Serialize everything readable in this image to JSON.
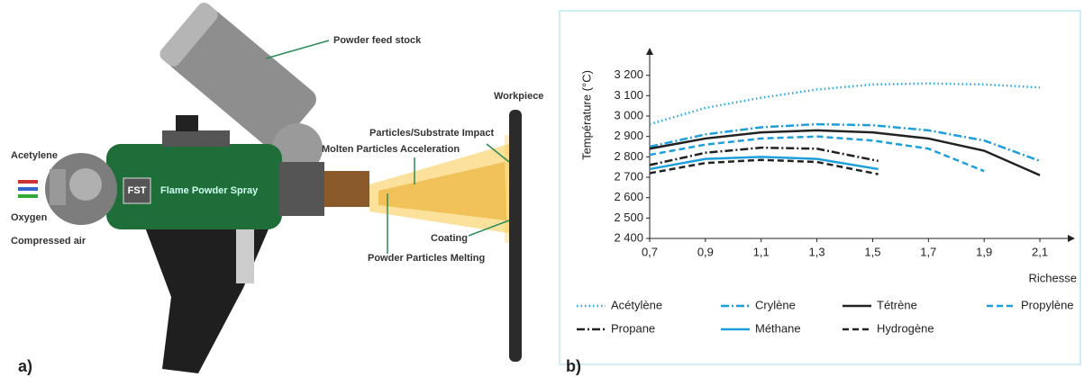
{
  "diagram": {
    "panel_label": "a)",
    "labels": {
      "feed": "Powder feed stock",
      "workpiece": "Workpiece",
      "impact": "Particles/Substrate Impact",
      "acceleration": "Molten Particles Acceleration",
      "acetylene": "Acetylene",
      "oxygen": "Oxygen",
      "air": "Compressed air",
      "coating": "Coating",
      "melting": "Powder Particles Melting",
      "logo": "FST",
      "brand": "Flame Powder Spray"
    }
  },
  "chart_data": {
    "type": "line",
    "panel_label": "b)",
    "ylabel": "Température (°C)",
    "xlabel": "Richesse",
    "xlim": [
      0.7,
      2.2
    ],
    "ylim": [
      2400,
      3300
    ],
    "xticks": [
      {
        "value": 0.7,
        "label": "0,7"
      },
      {
        "value": 0.9,
        "label": "0,9"
      },
      {
        "value": 1.1,
        "label": "1,1"
      },
      {
        "value": 1.3,
        "label": "1,3"
      },
      {
        "value": 1.5,
        "label": "1,5"
      },
      {
        "value": 1.7,
        "label": "1,7"
      },
      {
        "value": 1.9,
        "label": "1,9"
      },
      {
        "value": 2.1,
        "label": "2,1"
      }
    ],
    "yticks": [
      {
        "value": 2400,
        "label": "2 400"
      },
      {
        "value": 2500,
        "label": "2 500"
      },
      {
        "value": 2600,
        "label": "2 600"
      },
      {
        "value": 2700,
        "label": "2 700"
      },
      {
        "value": 2800,
        "label": "2 800"
      },
      {
        "value": 2900,
        "label": "2 900"
      },
      {
        "value": 3000,
        "label": "3 000"
      },
      {
        "value": 3100,
        "label": "3 100"
      },
      {
        "value": 3200,
        "label": "3 200"
      }
    ],
    "series": [
      {
        "name": "Acétylène",
        "color": "#29abe2",
        "style": "dotted",
        "x": [
          0.7,
          0.9,
          1.1,
          1.3,
          1.5,
          1.7,
          1.9,
          2.1
        ],
        "values": [
          2960,
          3040,
          3090,
          3130,
          3155,
          3160,
          3155,
          3140
        ]
      },
      {
        "name": "Crylène",
        "color": "#1e9fdc",
        "style": "dashdot",
        "x": [
          0.7,
          0.9,
          1.1,
          1.3,
          1.5,
          1.7,
          1.9,
          2.1
        ],
        "values": [
          2850,
          2910,
          2945,
          2960,
          2955,
          2930,
          2880,
          2780
        ]
      },
      {
        "name": "Tétrène",
        "color": "#222222",
        "style": "solid",
        "x": [
          0.7,
          0.9,
          1.1,
          1.3,
          1.5,
          1.7,
          1.9,
          2.1
        ],
        "values": [
          2840,
          2890,
          2920,
          2930,
          2920,
          2890,
          2830,
          2710
        ]
      },
      {
        "name": "Propylène",
        "color": "#1e9fdc",
        "style": "dashed",
        "x": [
          0.7,
          0.9,
          1.1,
          1.3,
          1.5,
          1.7,
          1.9
        ],
        "values": [
          2810,
          2860,
          2890,
          2900,
          2880,
          2840,
          2730
        ]
      },
      {
        "name": "Propane",
        "color": "#222222",
        "style": "dashdot",
        "x": [
          0.7,
          0.9,
          1.1,
          1.3,
          1.52
        ],
        "values": [
          2760,
          2820,
          2845,
          2840,
          2780
        ]
      },
      {
        "name": "Méthane",
        "color": "#1e9fdc",
        "style": "solid",
        "x": [
          0.7,
          0.9,
          1.1,
          1.3,
          1.52
        ],
        "values": [
          2740,
          2790,
          2800,
          2790,
          2740
        ]
      },
      {
        "name": "Hydrogène",
        "color": "#222222",
        "style": "dashed",
        "x": [
          0.7,
          0.9,
          1.1,
          1.3,
          1.52
        ],
        "values": [
          2720,
          2770,
          2785,
          2775,
          2715
        ]
      }
    ]
  }
}
